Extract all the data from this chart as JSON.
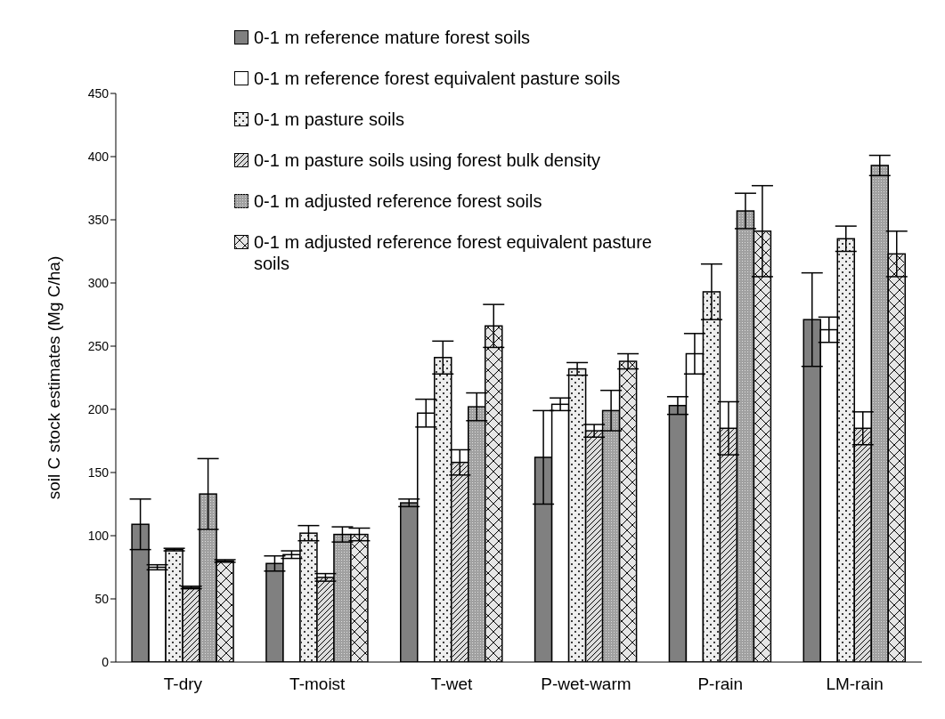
{
  "chart_data": {
    "type": "bar",
    "ylabel": "soil C stock estimates (Mg C/ha)",
    "categories": [
      "T-dry",
      "T-moist",
      "T-wet",
      "P-wet-warm",
      "P-rain",
      "LM-rain"
    ],
    "series": [
      {
        "name": "0-1 m reference mature forest soils",
        "color": "#808080",
        "values": [
          109,
          78,
          126,
          162,
          203,
          271
        ],
        "errors": [
          20,
          6,
          3,
          37,
          7,
          37
        ]
      },
      {
        "name": "0-1 m reference forest equivalent pasture soils",
        "color": "#ffffff",
        "values": [
          75,
          85,
          197,
          204,
          244,
          263
        ],
        "errors": [
          2,
          3,
          11,
          5,
          16,
          10
        ]
      },
      {
        "name": "0-1 m pasture soils",
        "color": "#eeeeee",
        "values": [
          89,
          102,
          241,
          232,
          293,
          335
        ],
        "errors": [
          1,
          6,
          13,
          5,
          22,
          10
        ]
      },
      {
        "name": "0-1 m pasture soils using forest bulk density",
        "color": "#dddddd",
        "values": [
          59,
          67,
          158,
          183,
          185,
          185
        ],
        "errors": [
          1,
          3,
          10,
          5,
          21,
          13
        ]
      },
      {
        "name": "0-1 m adjusted reference forest soils",
        "color": "#a0a0a0",
        "values": [
          133,
          101,
          202,
          199,
          357,
          393
        ],
        "errors": [
          28,
          6,
          11,
          16,
          14,
          8
        ]
      },
      {
        "name": "0-1 m adjusted reference forest equivalent pasture soils",
        "color": "#e6e6e6",
        "values": [
          80,
          101,
          266,
          238,
          341,
          323
        ],
        "errors": [
          1,
          5,
          17,
          6,
          36,
          18
        ]
      }
    ],
    "ylim": [
      0,
      450
    ],
    "yticks": [
      0,
      50,
      100,
      150,
      200,
      250,
      300,
      350,
      400,
      450
    ],
    "grid": false,
    "legend": "top"
  }
}
